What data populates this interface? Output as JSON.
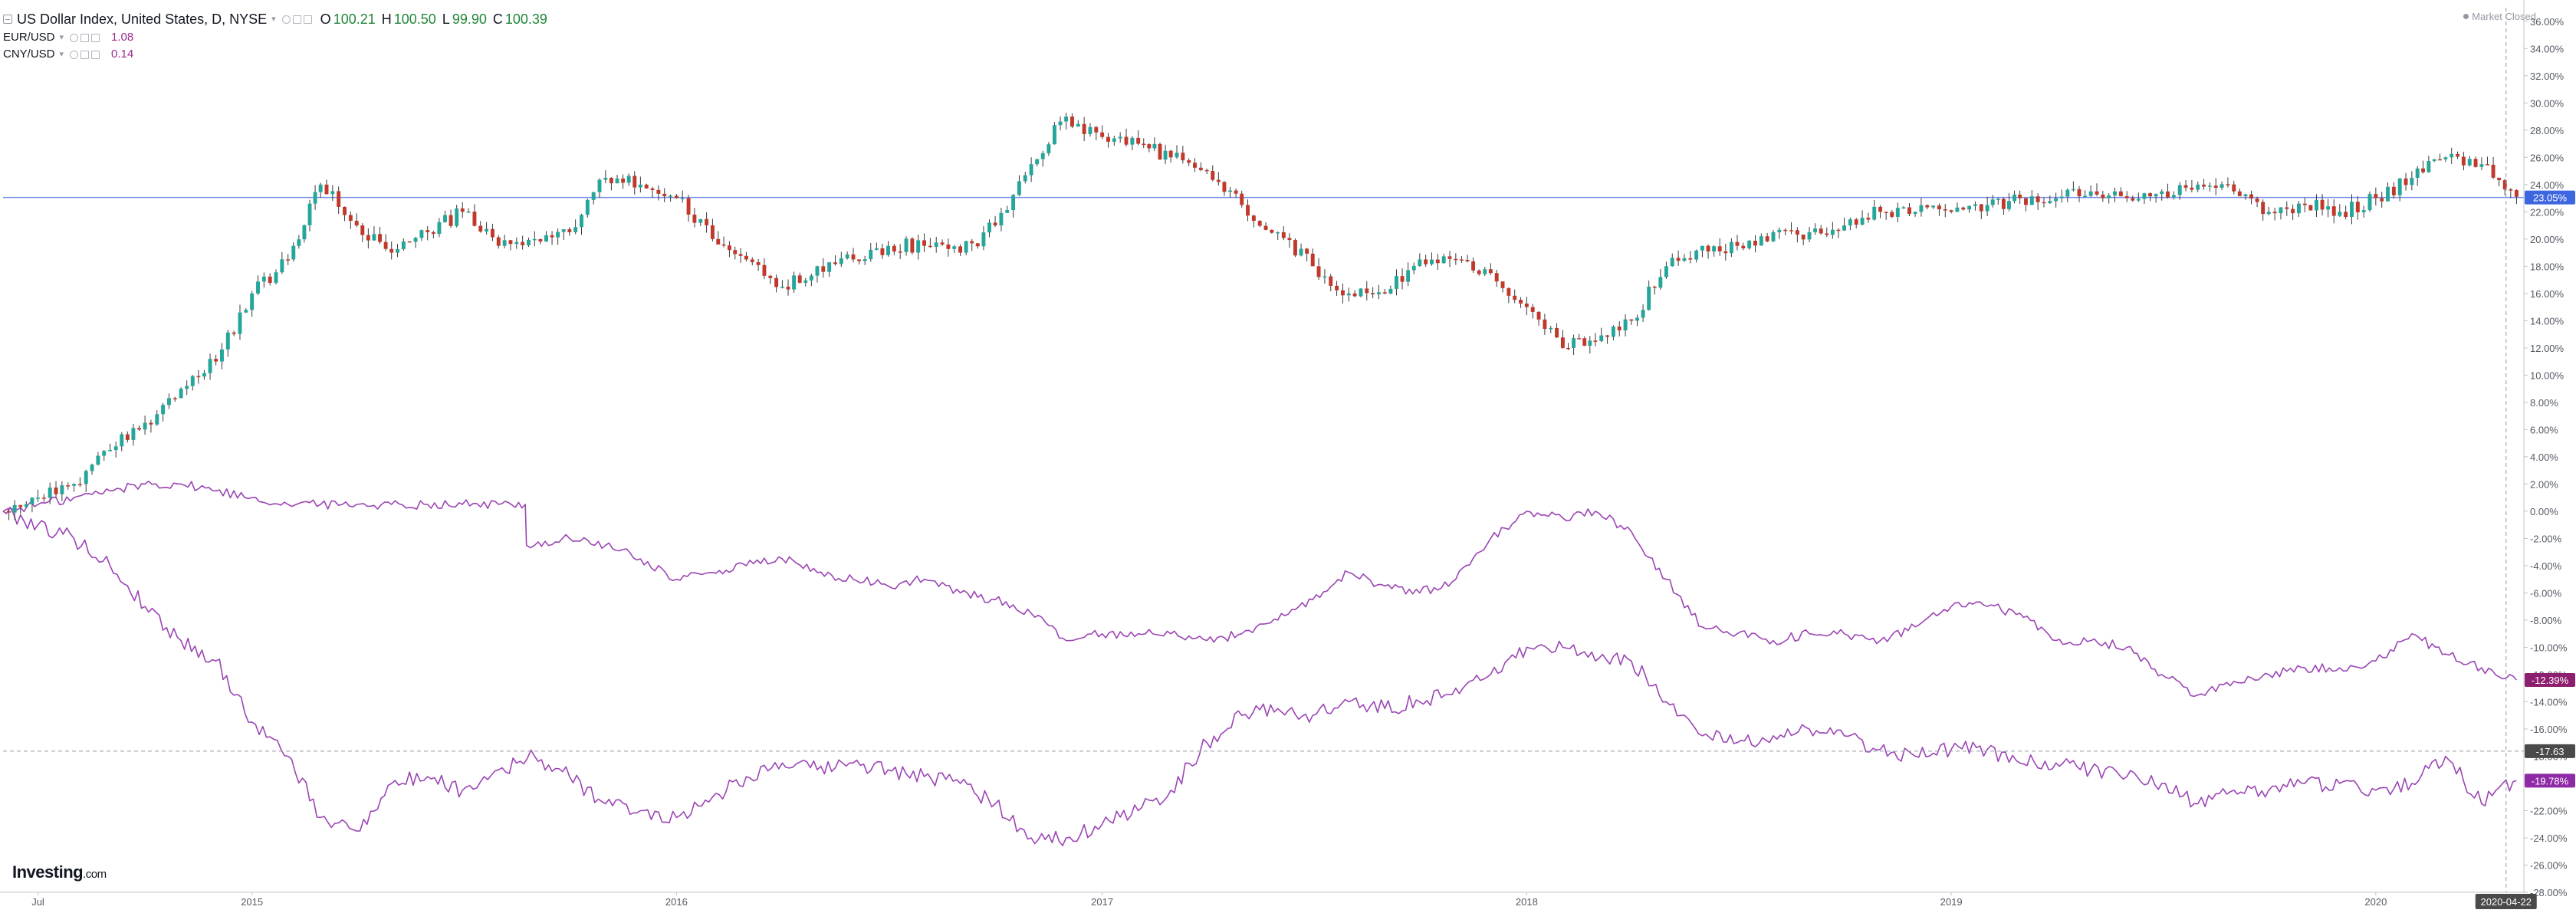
{
  "legend": {
    "main": {
      "symbol": "US Dollar Index, United States, D, NYSE",
      "o_label": "O",
      "o_value": "100.21",
      "h_label": "H",
      "h_value": "100.50",
      "l_label": "L",
      "l_value": "99.90",
      "c_label": "C",
      "c_value": "100.39"
    },
    "series": [
      {
        "symbol": "EUR/USD",
        "value": "1.08"
      },
      {
        "symbol": "CNY/USD",
        "value": "0.14"
      }
    ]
  },
  "market_status": "Market Closed",
  "brand": {
    "name": "Investing",
    "suffix": ".com"
  },
  "colors": {
    "up_candle": "#26a69a",
    "down_candle": "#c0392b",
    "candle_wick": "#3a3a3a",
    "compare_line": "#9b45b4",
    "dxy_last_badge": "#3d67e0",
    "eur_last_badge": "#8e1f6f",
    "cny_last_badge": "#8e2aa6",
    "crosshair_badge": "#4a4a4a",
    "horizontal_line": "#7b8fe8"
  },
  "chart_data": {
    "type": "line",
    "title": "US Dollar Index, United States, D, NYSE",
    "xlabel": "",
    "ylabel": "",
    "y_unit": "% change",
    "ylim": [
      -28,
      37
    ],
    "x_range": [
      "2014-06-01",
      "2020-05-06"
    ],
    "x_ticks": [
      {
        "date": "2014-07-01",
        "label": "Jul"
      },
      {
        "date": "2015-01-01",
        "label": "2015"
      },
      {
        "date": "2016-01-01",
        "label": "2016"
      },
      {
        "date": "2017-01-01",
        "label": "2017"
      },
      {
        "date": "2018-01-01",
        "label": "2018"
      },
      {
        "date": "2019-01-01",
        "label": "2019"
      },
      {
        "date": "2020-01-01",
        "label": "2020"
      }
    ],
    "y_ticks": [
      "36.00%",
      "34.00%",
      "32.00%",
      "30.00%",
      "28.00%",
      "26.00%",
      "24.00%",
      "22.00%",
      "20.00%",
      "18.00%",
      "16.00%",
      "14.00%",
      "12.00%",
      "10.00%",
      "8.00%",
      "6.00%",
      "4.00%",
      "2.00%",
      "0.00%",
      "-2.00%",
      "-4.00%",
      "-6.00%",
      "-8.00%",
      "-10.00%",
      "-12.00%",
      "-14.00%",
      "-16.00%",
      "-18.00%",
      "-20.00%",
      "-22.00%",
      "-24.00%",
      "-26.00%",
      "-28.00%"
    ],
    "grid": false,
    "legend": "top-left",
    "price_line_value": 23.05,
    "crosshair": {
      "date": "2020-04-22",
      "label": "2020-04-22",
      "value": -17.63,
      "value_label": "-17.63"
    },
    "last_value_labels": {
      "dxy": "23.05%",
      "eur": "-12.39%",
      "cny": "-19.78%"
    },
    "series": [
      {
        "name": "US Dollar Index",
        "style": "candlestick",
        "x": [
          "2014-06-01",
          "2014-07-01",
          "2014-08-01",
          "2014-09-01",
          "2014-10-01",
          "2014-11-01",
          "2014-12-01",
          "2015-01-01",
          "2015-02-01",
          "2015-03-01",
          "2015-04-01",
          "2015-05-01",
          "2015-06-01",
          "2015-07-01",
          "2015-08-01",
          "2015-09-01",
          "2015-10-01",
          "2015-11-01",
          "2015-12-01",
          "2016-01-01",
          "2016-02-01",
          "2016-03-01",
          "2016-04-01",
          "2016-05-01",
          "2016-06-01",
          "2016-07-01",
          "2016-08-01",
          "2016-09-01",
          "2016-10-01",
          "2016-11-01",
          "2016-12-01",
          "2017-01-01",
          "2017-02-01",
          "2017-03-01",
          "2017-04-01",
          "2017-05-01",
          "2017-06-01",
          "2017-07-01",
          "2017-08-01",
          "2017-09-01",
          "2017-10-01",
          "2017-11-01",
          "2017-12-01",
          "2018-01-01",
          "2018-02-01",
          "2018-03-01",
          "2018-04-01",
          "2018-05-01",
          "2018-06-01",
          "2018-07-01",
          "2018-08-01",
          "2018-09-01",
          "2018-10-01",
          "2018-11-01",
          "2018-12-01",
          "2019-01-01",
          "2019-02-01",
          "2019-03-01",
          "2019-04-01",
          "2019-05-01",
          "2019-06-01",
          "2019-07-01",
          "2019-08-01",
          "2019-09-01",
          "2019-10-01",
          "2019-11-01",
          "2019-12-01",
          "2020-01-01",
          "2020-02-01",
          "2020-03-01",
          "2020-04-01",
          "2020-05-01"
        ],
        "values": [
          0.0,
          1.0,
          2.0,
          4.5,
          6.5,
          9.0,
          11.0,
          16.0,
          18.5,
          24.0,
          21.0,
          19.0,
          20.5,
          22.0,
          19.5,
          20.0,
          20.5,
          24.5,
          24.0,
          23.0,
          20.0,
          18.5,
          16.5,
          18.0,
          18.5,
          19.5,
          19.5,
          19.0,
          21.0,
          25.5,
          29.0,
          27.5,
          27.0,
          26.0,
          25.0,
          22.5,
          20.5,
          18.0,
          16.0,
          16.0,
          18.5,
          18.5,
          17.5,
          15.0,
          12.0,
          12.5,
          14.0,
          18.0,
          19.5,
          19.5,
          20.5,
          20.5,
          21.0,
          22.0,
          22.0,
          22.0,
          22.5,
          23.0,
          23.0,
          23.5,
          23.0,
          23.5,
          24.0,
          23.5,
          22.0,
          22.5,
          22.0,
          23.0,
          24.5,
          26.0,
          25.5,
          23.1
        ]
      },
      {
        "name": "EUR/USD",
        "style": "line",
        "x": [
          "2014-06-01",
          "2014-07-01",
          "2014-08-01",
          "2014-09-01",
          "2014-10-01",
          "2014-11-01",
          "2014-12-01",
          "2015-01-01",
          "2015-02-01",
          "2015-03-01",
          "2015-04-01",
          "2015-05-01",
          "2015-06-01",
          "2015-07-01",
          "2015-08-01",
          "2015-08-24",
          "2015-08-25",
          "2015-09-01",
          "2015-10-01",
          "2015-11-01",
          "2015-12-01",
          "2016-01-01",
          "2016-02-01",
          "2016-03-01",
          "2016-04-01",
          "2016-05-01",
          "2016-06-01",
          "2016-07-01",
          "2016-08-01",
          "2016-09-01",
          "2016-10-01",
          "2016-11-01",
          "2016-12-01",
          "2017-01-01",
          "2017-02-01",
          "2017-03-01",
          "2017-04-01",
          "2017-05-01",
          "2017-06-01",
          "2017-07-01",
          "2017-08-01",
          "2017-09-01",
          "2017-10-01",
          "2017-11-01",
          "2017-12-01",
          "2018-01-01",
          "2018-02-01",
          "2018-03-01",
          "2018-04-01",
          "2018-05-01",
          "2018-06-01",
          "2018-07-01",
          "2018-08-01",
          "2018-09-01",
          "2018-10-01",
          "2018-11-01",
          "2018-12-01",
          "2019-01-01",
          "2019-02-01",
          "2019-03-01",
          "2019-04-01",
          "2019-05-01",
          "2019-06-01",
          "2019-07-01",
          "2019-08-01",
          "2019-09-01",
          "2019-10-01",
          "2019-11-01",
          "2019-12-01",
          "2020-01-01",
          "2020-02-01",
          "2020-03-01",
          "2020-04-01",
          "2020-05-01"
        ],
        "values": [
          0.0,
          0.5,
          1.0,
          1.5,
          2.0,
          2.0,
          1.5,
          1.0,
          0.5,
          0.5,
          0.5,
          0.5,
          0.5,
          0.5,
          0.5,
          0.5,
          -2.5,
          -2.5,
          -2.0,
          -2.5,
          -3.5,
          -5.0,
          -4.5,
          -4.0,
          -3.5,
          -4.5,
          -5.0,
          -5.5,
          -5.0,
          -6.0,
          -6.5,
          -7.5,
          -9.5,
          -9.0,
          -9.0,
          -9.0,
          -9.5,
          -9.0,
          -8.0,
          -6.5,
          -4.5,
          -5.5,
          -6.0,
          -5.0,
          -2.0,
          0.0,
          -0.5,
          0.0,
          -1.5,
          -5.0,
          -8.5,
          -9.0,
          -9.5,
          -9.0,
          -9.0,
          -9.5,
          -8.5,
          -7.0,
          -7.0,
          -7.5,
          -9.5,
          -9.5,
          -10.0,
          -12.0,
          -13.5,
          -12.5,
          -12.0,
          -11.5,
          -11.5,
          -11.0,
          -9.0,
          -10.5,
          -11.5,
          -12.4
        ]
      },
      {
        "name": "CNY/USD",
        "style": "line",
        "x": [
          "2014-06-01",
          "2014-07-01",
          "2014-08-01",
          "2014-09-01",
          "2014-10-01",
          "2014-11-01",
          "2014-12-01",
          "2015-01-01",
          "2015-02-01",
          "2015-03-01",
          "2015-04-01",
          "2015-05-01",
          "2015-06-01",
          "2015-07-01",
          "2015-08-01",
          "2015-09-01",
          "2015-10-01",
          "2015-11-01",
          "2015-12-01",
          "2016-01-01",
          "2016-02-01",
          "2016-03-01",
          "2016-04-01",
          "2016-05-01",
          "2016-06-01",
          "2016-07-01",
          "2016-08-01",
          "2016-09-01",
          "2016-10-01",
          "2016-11-01",
          "2016-12-01",
          "2017-01-01",
          "2017-02-01",
          "2017-03-01",
          "2017-04-01",
          "2017-05-01",
          "2017-06-01",
          "2017-07-01",
          "2017-08-01",
          "2017-09-01",
          "2017-10-01",
          "2017-11-01",
          "2017-12-01",
          "2018-01-01",
          "2018-02-01",
          "2018-03-01",
          "2018-04-01",
          "2018-05-01",
          "2018-06-01",
          "2018-07-01",
          "2018-08-01",
          "2018-09-01",
          "2018-10-01",
          "2018-11-01",
          "2018-12-01",
          "2019-01-01",
          "2019-02-01",
          "2019-03-01",
          "2019-04-01",
          "2019-05-01",
          "2019-06-01",
          "2019-07-01",
          "2019-08-01",
          "2019-09-01",
          "2019-10-01",
          "2019-11-01",
          "2019-12-01",
          "2020-01-01",
          "2020-02-01",
          "2020-03-01",
          "2020-04-01",
          "2020-05-01"
        ],
        "values": [
          0.0,
          -1.0,
          -2.0,
          -4.0,
          -7.0,
          -9.5,
          -11.0,
          -15.5,
          -18.0,
          -22.5,
          -23.5,
          -20.0,
          -19.5,
          -20.5,
          -19.0,
          -18.0,
          -19.5,
          -21.5,
          -22.0,
          -22.5,
          -21.0,
          -19.5,
          -18.5,
          -19.0,
          -18.5,
          -19.0,
          -19.5,
          -20.0,
          -21.5,
          -24.0,
          -24.0,
          -23.0,
          -22.0,
          -20.5,
          -17.0,
          -15.0,
          -14.5,
          -15.0,
          -14.0,
          -14.5,
          -14.0,
          -13.0,
          -12.0,
          -10.0,
          -10.0,
          -11.0,
          -11.0,
          -14.0,
          -16.5,
          -17.0,
          -16.5,
          -16.0,
          -16.5,
          -17.5,
          -18.0,
          -17.5,
          -17.5,
          -18.5,
          -18.5,
          -19.0,
          -19.5,
          -20.0,
          -21.5,
          -20.5,
          -20.5,
          -20.0,
          -20.0,
          -20.5,
          -20.0,
          -18.0,
          -21.5,
          -19.8
        ]
      }
    ]
  }
}
